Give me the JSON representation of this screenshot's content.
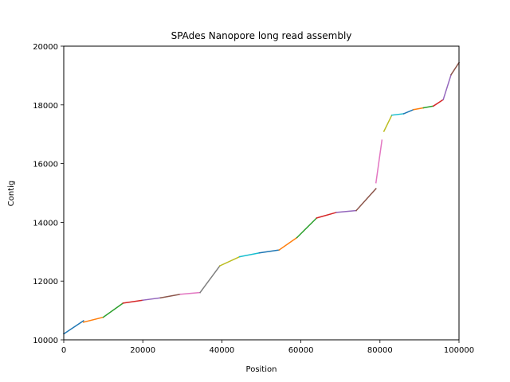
{
  "chart_data": {
    "type": "line",
    "title": "SPAdes Nanopore long read assembly",
    "xlabel": "Position",
    "ylabel": "Contig",
    "xlim": [
      0,
      100000
    ],
    "ylim": [
      10000,
      20000
    ],
    "grid": false,
    "legend": "none",
    "x_ticks": [
      "0",
      "20000",
      "40000",
      "60000",
      "80000",
      "100000"
    ],
    "y_ticks": [
      "10000",
      "12000",
      "14000",
      "16000",
      "18000",
      "20000"
    ],
    "x_tick_values": [
      0,
      20000,
      40000,
      60000,
      80000,
      100000
    ],
    "y_tick_values": [
      10000,
      12000,
      14000,
      16000,
      18000,
      20000
    ],
    "series": [
      {
        "color": "#1f77b4",
        "points": [
          [
            0,
            10200
          ],
          [
            5000,
            10650
          ]
        ]
      },
      {
        "color": "#ff7f0e",
        "points": [
          [
            5000,
            10600
          ],
          [
            10000,
            10770
          ]
        ]
      },
      {
        "color": "#2ca02c",
        "points": [
          [
            10000,
            10770
          ],
          [
            15000,
            11250
          ]
        ]
      },
      {
        "color": "#d62728",
        "points": [
          [
            15000,
            11250
          ],
          [
            20000,
            11350
          ]
        ]
      },
      {
        "color": "#9467bd",
        "points": [
          [
            20000,
            11350
          ],
          [
            24500,
            11430
          ]
        ]
      },
      {
        "color": "#8c564b",
        "points": [
          [
            24500,
            11430
          ],
          [
            29500,
            11550
          ]
        ]
      },
      {
        "color": "#e377c2",
        "points": [
          [
            29500,
            11550
          ],
          [
            34500,
            11610
          ]
        ]
      },
      {
        "color": "#7f7f7f",
        "points": [
          [
            34500,
            11610
          ],
          [
            39500,
            12520
          ]
        ]
      },
      {
        "color": "#bcbd22",
        "points": [
          [
            39500,
            12520
          ],
          [
            44500,
            12830
          ]
        ]
      },
      {
        "color": "#17becf",
        "points": [
          [
            44500,
            12830
          ],
          [
            49500,
            12960
          ]
        ]
      },
      {
        "color": "#1f77b4",
        "points": [
          [
            49500,
            12960
          ],
          [
            54500,
            13060
          ]
        ]
      },
      {
        "color": "#ff7f0e",
        "points": [
          [
            54500,
            13060
          ],
          [
            59000,
            13480
          ]
        ]
      },
      {
        "color": "#2ca02c",
        "points": [
          [
            59000,
            13480
          ],
          [
            64000,
            14150
          ]
        ]
      },
      {
        "color": "#d62728",
        "points": [
          [
            64000,
            14150
          ],
          [
            69000,
            14340
          ]
        ]
      },
      {
        "color": "#9467bd",
        "points": [
          [
            69000,
            14340
          ],
          [
            74000,
            14400
          ]
        ]
      },
      {
        "color": "#8c564b",
        "points": [
          [
            74000,
            14400
          ],
          [
            79000,
            15150
          ]
        ]
      },
      {
        "color": "#e377c2",
        "points": [
          [
            79000,
            15350
          ],
          [
            80500,
            16800
          ]
        ]
      },
      {
        "color": "#bcbd22",
        "points": [
          [
            81000,
            17100
          ],
          [
            83000,
            17650
          ]
        ]
      },
      {
        "color": "#17becf",
        "points": [
          [
            83000,
            17650
          ],
          [
            86000,
            17700
          ]
        ]
      },
      {
        "color": "#1f77b4",
        "points": [
          [
            86000,
            17700
          ],
          [
            88500,
            17840
          ]
        ]
      },
      {
        "color": "#ff7f0e",
        "points": [
          [
            88500,
            17840
          ],
          [
            91000,
            17900
          ]
        ]
      },
      {
        "color": "#2ca02c",
        "points": [
          [
            91000,
            17900
          ],
          [
            93500,
            17960
          ]
        ]
      },
      {
        "color": "#d62728",
        "points": [
          [
            93500,
            17960
          ],
          [
            96000,
            18180
          ]
        ]
      },
      {
        "color": "#9467bd",
        "points": [
          [
            96000,
            18180
          ],
          [
            98000,
            19030
          ]
        ]
      },
      {
        "color": "#8c564b",
        "points": [
          [
            98000,
            19030
          ],
          [
            100000,
            19440
          ]
        ]
      }
    ]
  }
}
